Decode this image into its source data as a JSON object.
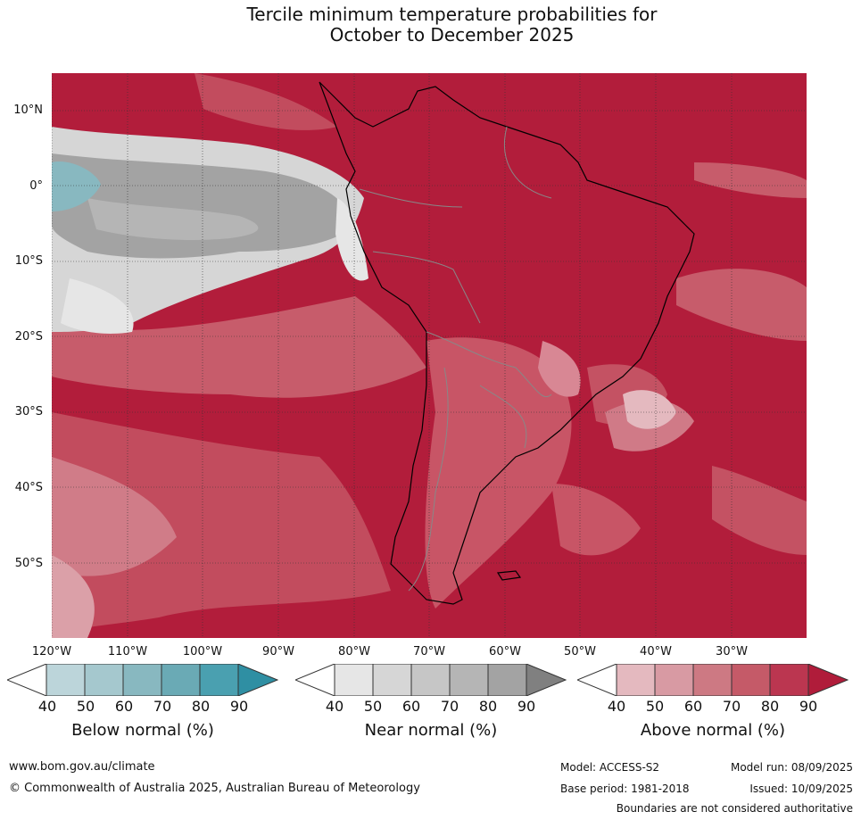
{
  "title": {
    "line1": "Tercile minimum temperature probabilities for",
    "line2": "October to December 2025"
  },
  "map": {
    "latitude_labels": [
      "10°N",
      "0°",
      "10°S",
      "20°S",
      "30°S",
      "40°S",
      "50°S"
    ],
    "longitude_labels": [
      "120°W",
      "110°W",
      "100°W",
      "90°W",
      "80°W",
      "70°W",
      "60°W",
      "50°W",
      "40°W",
      "30°W"
    ]
  },
  "colorbars": [
    {
      "title": "Below normal (%)",
      "ticks": [
        "40",
        "50",
        "60",
        "70",
        "80",
        "90"
      ],
      "colors": [
        "#ffffff",
        "#bcd5da",
        "#a5c8ce",
        "#88b8c0",
        "#6aaab5",
        "#4aa0b0",
        "#2f8fa3"
      ]
    },
    {
      "title": "Near normal (%)",
      "ticks": [
        "40",
        "50",
        "60",
        "70",
        "80",
        "90"
      ],
      "colors": [
        "#ffffff",
        "#e6e6e6",
        "#d6d6d6",
        "#c6c6c6",
        "#b5b5b5",
        "#a3a3a3",
        "#808080"
      ]
    },
    {
      "title": "Above normal (%)",
      "ticks": [
        "40",
        "50",
        "60",
        "70",
        "80",
        "90"
      ],
      "colors": [
        "#ffffff",
        "#e4b9bf",
        "#d89aa3",
        "#cd7983",
        "#c55a68",
        "#bb3650",
        "#b01c3a"
      ]
    }
  ],
  "footer": {
    "website": "www.bom.gov.au/climate",
    "copyright": "© Commonwealth of Australia 2025, Australian Bureau of Meteorology",
    "model": "Model: ACCESS-S2",
    "model_run": "Model run: 08/09/2025",
    "base_period": "Base period: 1981-2018",
    "issued": "Issued: 10/09/2025",
    "disclaimer": "Boundaries are not considered authoritative"
  }
}
